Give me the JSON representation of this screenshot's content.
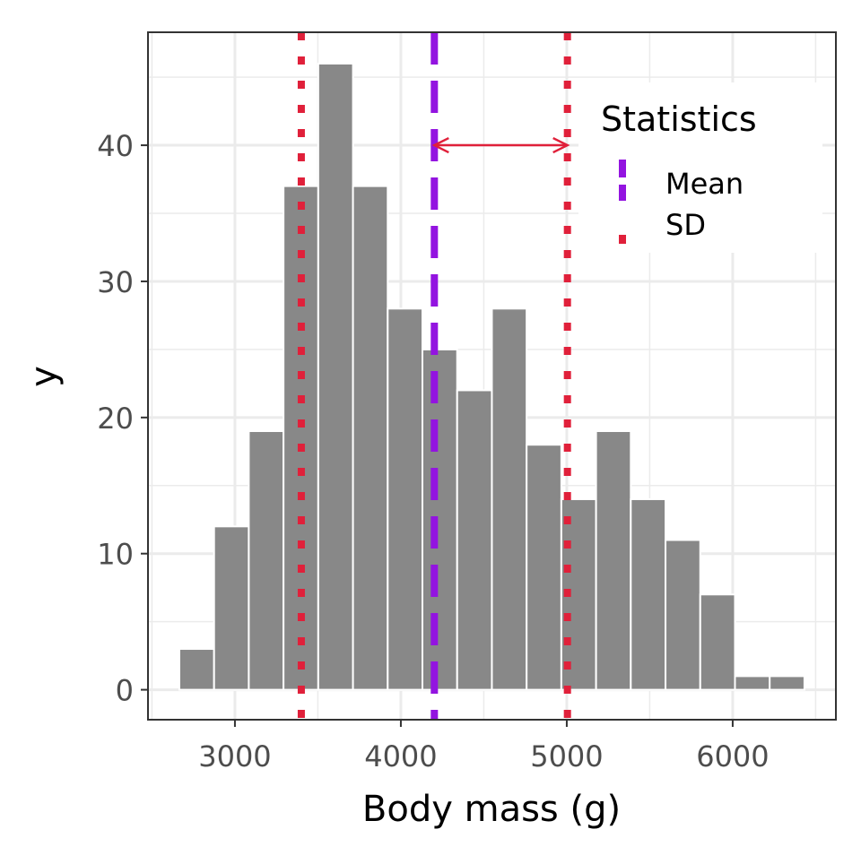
{
  "chart_data": {
    "type": "bar",
    "subtype": "histogram",
    "xlabel": "Body mass (g)",
    "ylabel": "y",
    "xlim": [
      2476,
      6622
    ],
    "ylim": [
      -2.2,
      48.3
    ],
    "xticks": [
      3000,
      4000,
      5000,
      6000
    ],
    "xtick_labels": [
      "3000",
      "4000",
      "5000",
      "6000"
    ],
    "yticks": [
      0,
      10,
      20,
      30,
      40
    ],
    "ytick_labels": [
      "0",
      "10",
      "20",
      "30",
      "40"
    ],
    "grid": true,
    "bins": {
      "start": 2665,
      "width": 209.3,
      "counts": [
        3,
        12,
        19,
        37,
        46,
        37,
        28,
        25,
        22,
        28,
        18,
        14,
        19,
        14,
        11,
        7,
        1,
        1
      ]
    },
    "bar_color": "#888888",
    "statistics": {
      "mean": 4202,
      "sd": 802,
      "arrow_y": 40
    },
    "legend": {
      "title": "Statistics",
      "placement": "top-right",
      "entries": [
        {
          "label": "Mean",
          "color": "#9314e0",
          "linetype": "dashed"
        },
        {
          "label": "SD",
          "color": "#e0203a",
          "linetype": "dotted"
        }
      ]
    }
  }
}
